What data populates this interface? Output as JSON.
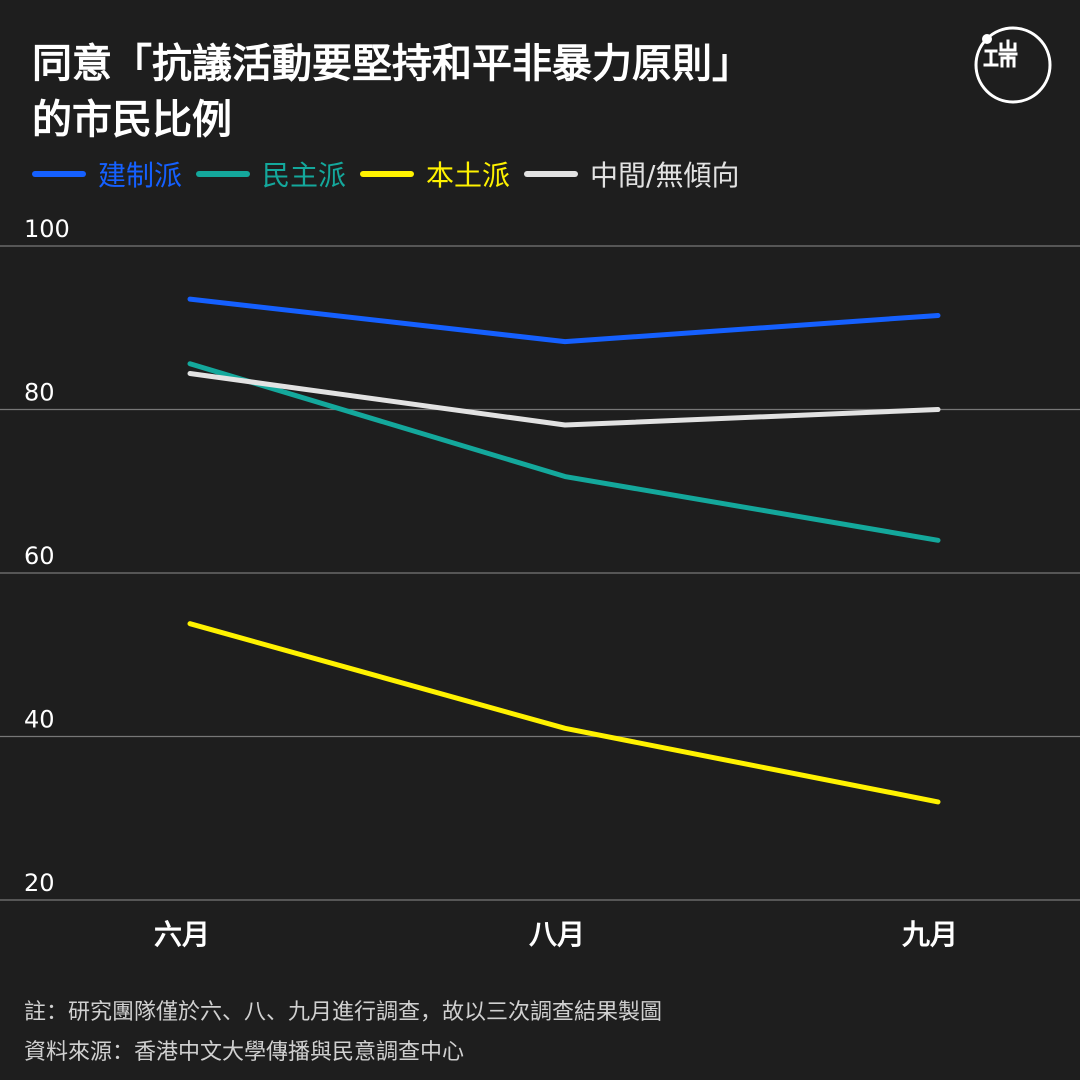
{
  "title_line1": "同意「抗議活動要堅持和平非暴力原則」",
  "title_line2": "的市民比例",
  "logo_text": "端",
  "footnote": "註：研究團隊僅於六、八、九月進行調查，故以三次調查結果製圖",
  "source": "資料來源：香港中文大學傳播與民意調查中心",
  "colors": {
    "background": "#1e1e1e",
    "gridline": "#777777",
    "text": "#ffffff"
  },
  "chart_data": {
    "type": "line",
    "title": "同意「抗議活動要堅持和平非暴力原則」的市民比例",
    "categories": [
      "六月",
      "八月",
      "九月"
    ],
    "yticks": [
      "20",
      "40",
      "60",
      "80",
      "100"
    ],
    "ylim": [
      20,
      100
    ],
    "grid": true,
    "legend_position": "top-left",
    "series": [
      {
        "name": "建制派",
        "color": "#1560ff",
        "values": [
          93.5,
          88.3,
          91.5
        ]
      },
      {
        "name": "民主派",
        "color": "#14a89c",
        "values": [
          85.6,
          71.8,
          64.0
        ]
      },
      {
        "name": "本土派",
        "color": "#fff200",
        "values": [
          53.8,
          41.0,
          32.0
        ]
      },
      {
        "name": "中間/無傾向",
        "color": "#e2e2e2",
        "values": [
          84.4,
          78.1,
          80.0
        ]
      }
    ]
  }
}
